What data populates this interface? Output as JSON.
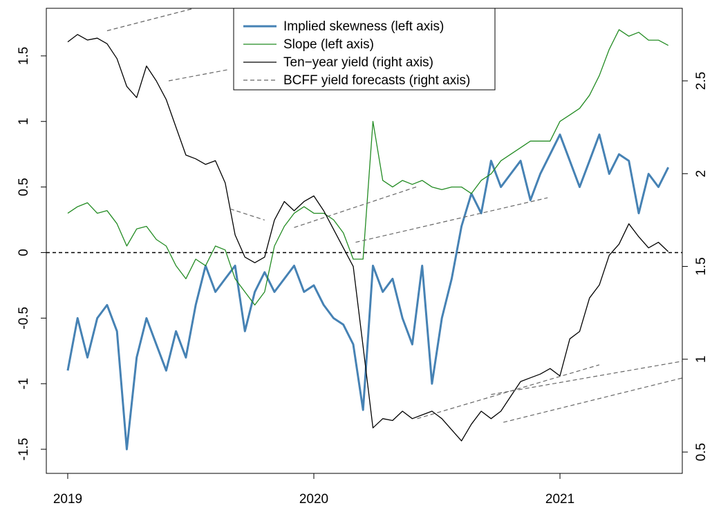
{
  "chart_data": {
    "type": "line",
    "x": [
      2019.0,
      2019.04,
      2019.08,
      2019.12,
      2019.16,
      2019.2,
      2019.24,
      2019.28,
      2019.32,
      2019.36,
      2019.4,
      2019.44,
      2019.48,
      2019.52,
      2019.56,
      2019.6,
      2019.64,
      2019.68,
      2019.72,
      2019.76,
      2019.8,
      2019.84,
      2019.88,
      2019.92,
      2019.96,
      2020.0,
      2020.04,
      2020.08,
      2020.12,
      2020.16,
      2020.2,
      2020.24,
      2020.28,
      2020.32,
      2020.36,
      2020.4,
      2020.44,
      2020.48,
      2020.52,
      2020.56,
      2020.6,
      2020.64,
      2020.68,
      2020.72,
      2020.76,
      2020.8,
      2020.84,
      2020.88,
      2020.92,
      2020.96,
      2021.0,
      2021.04,
      2021.08,
      2021.12,
      2021.16,
      2021.2,
      2021.24,
      2021.28,
      2021.32,
      2021.36,
      2021.4,
      2021.44
    ],
    "xlim": [
      2018.913,
      2021.497
    ],
    "xticks": [
      2019,
      2020,
      2021
    ],
    "ylim": [
      -1.684,
      1.863
    ],
    "yticks": [
      -1.5,
      -1.0,
      -0.5,
      0.0,
      0.5,
      1.0,
      1.5
    ],
    "y2lim": [
      0.385,
      2.891
    ],
    "y2ticks": [
      0.5,
      1.0,
      1.5,
      2.0,
      2.5
    ],
    "hline": 0,
    "series": [
      {
        "name": "Implied skewness (left axis)",
        "color": "#4682b4",
        "width": 3,
        "axis": "y",
        "values": [
          -0.9,
          -0.5,
          -0.8,
          -0.5,
          -0.4,
          -0.6,
          -1.5,
          -0.8,
          -0.5,
          -0.7,
          -0.9,
          -0.6,
          -0.8,
          -0.4,
          -0.1,
          -0.3,
          -0.2,
          -0.1,
          -0.6,
          -0.3,
          -0.15,
          -0.3,
          -0.2,
          -0.1,
          -0.3,
          -0.25,
          -0.4,
          -0.5,
          -0.55,
          -0.7,
          -1.2,
          -0.1,
          -0.3,
          -0.2,
          -0.5,
          -0.7,
          -0.1,
          -1.0,
          -0.5,
          -0.2,
          0.2,
          0.45,
          0.3,
          0.7,
          0.5,
          0.6,
          0.7,
          0.4,
          0.6,
          0.75,
          0.9,
          0.7,
          0.5,
          0.7,
          0.9,
          0.6,
          0.75,
          0.7,
          0.3,
          0.6,
          0.5,
          0.65
        ]
      },
      {
        "name": "Slope (left axis)",
        "color": "#228b22",
        "width": 1.3,
        "axis": "y",
        "values": [
          0.3,
          0.35,
          0.38,
          0.3,
          0.32,
          0.22,
          0.05,
          0.18,
          0.2,
          0.1,
          0.05,
          -0.1,
          -0.2,
          -0.05,
          -0.1,
          0.05,
          0.02,
          -0.2,
          -0.3,
          -0.4,
          -0.3,
          0.05,
          0.2,
          0.3,
          0.35,
          0.3,
          0.3,
          0.25,
          0.15,
          -0.05,
          -0.05,
          1.0,
          0.55,
          0.5,
          0.55,
          0.52,
          0.55,
          0.5,
          0.48,
          0.5,
          0.5,
          0.45,
          0.55,
          0.6,
          0.7,
          0.75,
          0.8,
          0.85,
          0.85,
          0.85,
          1.0,
          1.05,
          1.1,
          1.2,
          1.35,
          1.55,
          1.7,
          1.65,
          1.68,
          1.62,
          1.62,
          1.58
        ]
      },
      {
        "name": "Ten−year yield (right axis)",
        "color": "#000000",
        "width": 1.3,
        "axis": "y2",
        "values": [
          2.71,
          2.75,
          2.72,
          2.73,
          2.7,
          2.62,
          2.47,
          2.41,
          2.58,
          2.5,
          2.4,
          2.25,
          2.1,
          2.08,
          2.05,
          2.07,
          1.95,
          1.67,
          1.55,
          1.52,
          1.55,
          1.75,
          1.85,
          1.8,
          1.85,
          1.88,
          1.8,
          1.7,
          1.6,
          1.5,
          1.07,
          0.63,
          0.68,
          0.67,
          0.72,
          0.68,
          0.7,
          0.72,
          0.68,
          0.62,
          0.56,
          0.65,
          0.72,
          0.68,
          0.72,
          0.8,
          0.88,
          0.9,
          0.92,
          0.95,
          0.91,
          1.11,
          1.15,
          1.33,
          1.4,
          1.56,
          1.62,
          1.73,
          1.66,
          1.6,
          1.63,
          1.58
        ]
      },
      {
        "name": "BCFF yield forecasts (right axis)",
        "color": "#666666",
        "width": 1.2,
        "axis": "y2",
        "dash": true,
        "segments": [
          {
            "x": [
              2019.16,
              2019.51
            ],
            "values": [
              2.77,
              2.89
            ]
          },
          {
            "x": [
              2019.41,
              2019.65
            ],
            "values": [
              2.5,
              2.56
            ]
          },
          {
            "x": [
              2019.66,
              2019.8
            ],
            "values": [
              1.81,
              1.75
            ]
          },
          {
            "x": [
              2019.92,
              2020.42
            ],
            "values": [
              1.71,
              1.93
            ]
          },
          {
            "x": [
              2020.17,
              2020.95
            ],
            "values": [
              1.63,
              1.87
            ]
          },
          {
            "x": [
              2020.42,
              2021.16
            ],
            "values": [
              0.68,
              0.97
            ]
          },
          {
            "x": [
              2020.72,
              2021.5
            ],
            "values": [
              0.81,
              0.99
            ]
          },
          {
            "x": [
              2020.77,
              2021.5
            ],
            "values": [
              0.66,
              0.9
            ]
          }
        ]
      }
    ]
  }
}
